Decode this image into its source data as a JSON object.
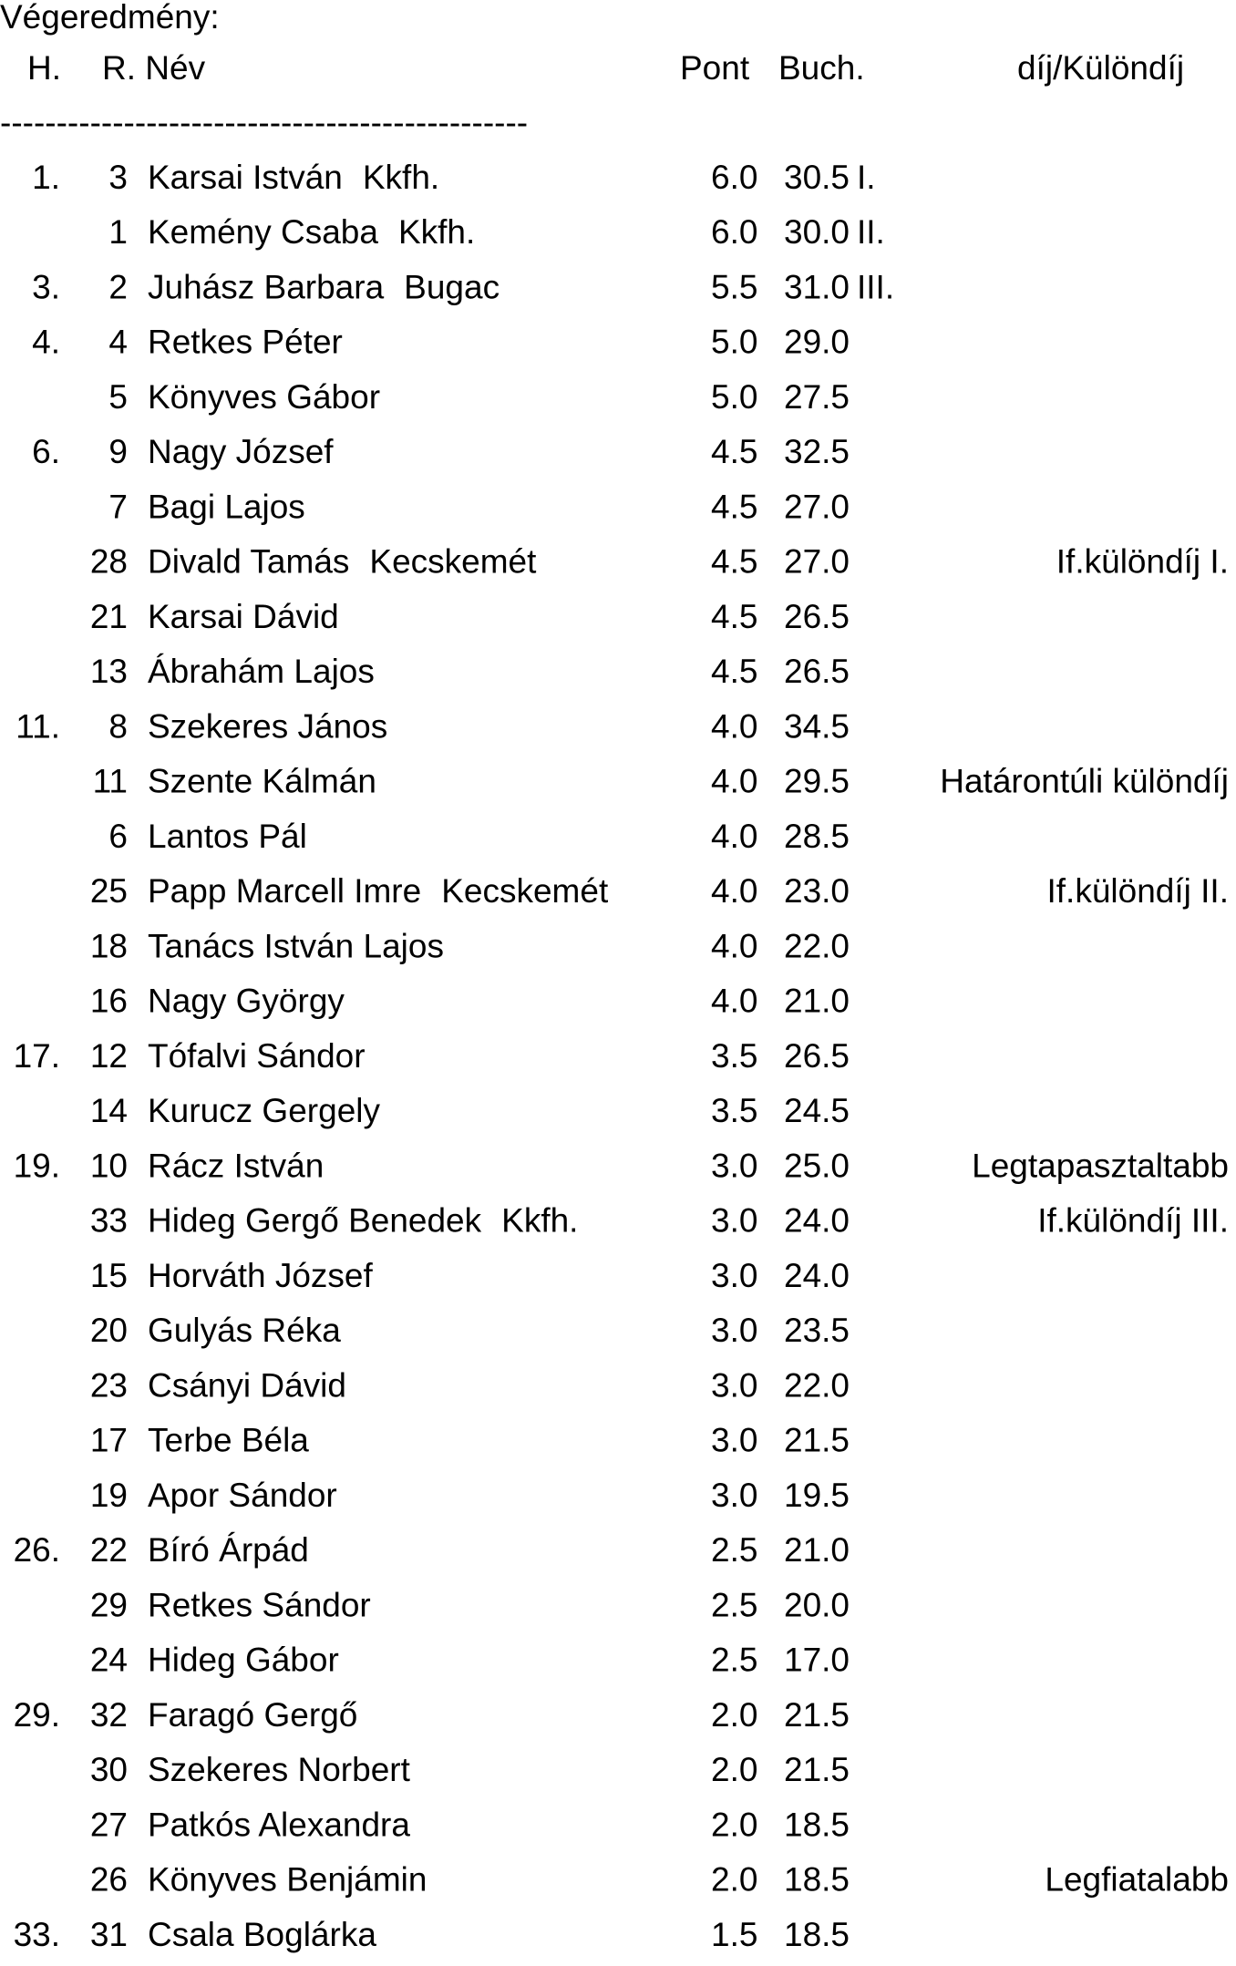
{
  "header": {
    "title": "Végeredmény:",
    "columns": [
      "H.",
      "R. Név",
      "Pont",
      "Buch.",
      "díj/Különdíj"
    ],
    "separator": "-----------------------------------------------"
  },
  "table": {
    "rows": [
      {
        "place": "1.",
        "rank": 3,
        "name": "Karsai István",
        "club": "Kkfh.",
        "points": "6.0",
        "buch": "30.5",
        "prize": "I."
      },
      {
        "rank": 1,
        "name": "Kemény Csaba",
        "club": "Kkfh.",
        "points": "6.0",
        "buch": "30.0",
        "prize": "II."
      },
      {
        "place": "3.",
        "rank": 2,
        "name": "Juhász Barbara",
        "club": "Bugac",
        "points": "5.5",
        "buch": "31.0",
        "prize": "III."
      },
      {
        "place": "4.",
        "rank": 4,
        "name": "Retkes Péter",
        "points": "5.0",
        "buch": "29.0"
      },
      {
        "rank": 5,
        "name": "Könyves Gábor",
        "points": "5.0",
        "buch": "27.5"
      },
      {
        "place": "6.",
        "rank": 9,
        "name": "Nagy József",
        "points": "4.5",
        "buch": "32.5"
      },
      {
        "rank": 7,
        "name": "Bagi Lajos",
        "points": "4.5",
        "buch": "27.0"
      },
      {
        "rank": 28,
        "name": "Divald Tamás",
        "club": "Kecskemét",
        "points": "4.5",
        "buch": "27.0",
        "prize": "If.különdíj I."
      },
      {
        "rank": 21,
        "name": "Karsai Dávid",
        "points": "4.5",
        "buch": "26.5"
      },
      {
        "rank": 13,
        "name": "Ábrahám Lajos",
        "points": "4.5",
        "buch": "26.5"
      },
      {
        "place": "11.",
        "rank": 8,
        "name": "Szekeres János",
        "points": "4.0",
        "buch": "34.5"
      },
      {
        "rank": 11,
        "name": "Szente Kálmán",
        "points": "4.0",
        "buch": "29.5",
        "prize": "Határontúli különdíj"
      },
      {
        "rank": 6,
        "name": "Lantos Pál",
        "points": "4.0",
        "buch": "28.5"
      },
      {
        "rank": 25,
        "name": "Papp Marcell Imre",
        "club": "Kecskemét",
        "points": "4.0",
        "buch": "23.0",
        "prize": "If.különdíj II."
      },
      {
        "rank": 18,
        "name": "Tanács István Lajos",
        "points": "4.0",
        "buch": "22.0"
      },
      {
        "rank": 16,
        "name": "Nagy György",
        "points": "4.0",
        "buch": "21.0"
      },
      {
        "place": "17.",
        "rank": 12,
        "name": "Tófalvi Sándor",
        "points": "3.5",
        "buch": "26.5"
      },
      {
        "rank": 14,
        "name": "Kurucz Gergely",
        "points": "3.5",
        "buch": "24.5"
      },
      {
        "place": "19.",
        "rank": 10,
        "name": "Rácz István",
        "points": "3.0",
        "buch": "25.0",
        "prize": "Legtapasztaltabb"
      },
      {
        "rank": 33,
        "name": "Hideg Gergő Benedek",
        "club": "Kkfh.",
        "points": "3.0",
        "buch": "24.0",
        "prize": "If.különdíj III."
      },
      {
        "rank": 15,
        "name": "Horváth József",
        "points": "3.0",
        "buch": "24.0"
      },
      {
        "rank": 20,
        "name": "Gulyás Réka",
        "points": "3.0",
        "buch": "23.5"
      },
      {
        "rank": 23,
        "name": "Csányi Dávid",
        "points": "3.0",
        "buch": "22.0"
      },
      {
        "rank": 17,
        "name": "Terbe Béla",
        "points": "3.0",
        "buch": "21.5"
      },
      {
        "rank": 19,
        "name": "Apor Sándor",
        "points": "3.0",
        "buch": "19.5"
      },
      {
        "place": "26.",
        "rank": 22,
        "name": "Bíró Árpád",
        "points": "2.5",
        "buch": "21.0"
      },
      {
        "rank": 29,
        "name": "Retkes Sándor",
        "points": "2.5",
        "buch": "20.0"
      },
      {
        "rank": 24,
        "name": "Hideg Gábor",
        "points": "2.5",
        "buch": "17.0"
      },
      {
        "place": "29.",
        "rank": 32,
        "name": "Faragó Gergő",
        "points": "2.0",
        "buch": "21.5"
      },
      {
        "rank": 30,
        "name": "Szekeres Norbert",
        "points": "2.0",
        "buch": "21.5"
      },
      {
        "rank": 27,
        "name": "Patkós Alexandra",
        "points": "2.0",
        "buch": "18.5"
      },
      {
        "rank": 26,
        "name": "Könyves Benjámin",
        "points": "2.0",
        "buch": "18.5",
        "prize": "Legfiatalabb"
      },
      {
        "place": "33.",
        "rank": 31,
        "name": "Csala Boglárka",
        "points": "1.5",
        "buch": "18.5"
      }
    ]
  }
}
